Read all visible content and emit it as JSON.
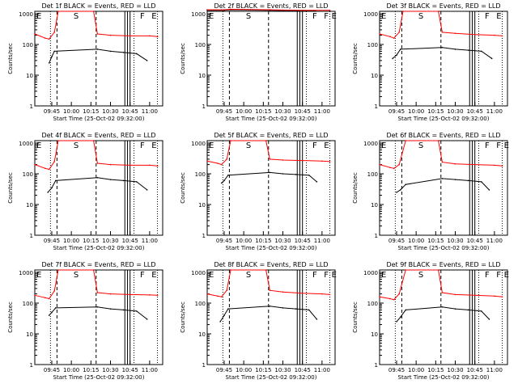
{
  "figure": {
    "ylabel": "Counts/sec",
    "xlabel": "Start Time (25-Oct-02 09:32:00)",
    "y_ticks": [
      "1",
      "10",
      "100",
      "1000"
    ],
    "x_ticks": [
      "09:45",
      "10:00",
      "10:15",
      "10:30",
      "10:45",
      "11:00"
    ],
    "colors": {
      "events": "#000000",
      "lld": "#ff0000",
      "axes": "#000000"
    }
  },
  "chart_data": [
    {
      "type": "line",
      "title": "Det 1f BLACK = Events, RED = LLD",
      "xlabel": "Start Time (25-Oct-02 09:32:00)",
      "ylabel": "Counts/sec",
      "y_scale": "log",
      "ylim": [
        1,
        1200
      ],
      "xlim": [
        "09:32",
        "11:10"
      ],
      "x_ticks": [
        "09:45",
        "10:00",
        "10:15",
        "10:30",
        "10:45",
        "11:00"
      ],
      "y_ticks": [
        "1",
        "10",
        "100",
        "1000"
      ],
      "markers": [
        "E",
        "S",
        "F",
        "E"
      ],
      "series": [
        {
          "name": "Events",
          "color": "#000000",
          "x": [
            "09:43",
            "09:45",
            "09:47",
            "10:20",
            "10:30",
            "10:40",
            "10:50",
            "10:58"
          ],
          "y": [
            25,
            40,
            60,
            70,
            60,
            55,
            50,
            30
          ]
        },
        {
          "name": "LLD",
          "color": "#ff0000",
          "x": [
            "09:32",
            "09:40",
            "09:43",
            "09:47",
            "09:50",
            "10:17",
            "10:20",
            "10:30",
            "10:45",
            "11:00",
            "11:06"
          ],
          "y": [
            220,
            160,
            150,
            250,
            1200,
            1200,
            220,
            200,
            190,
            190,
            180
          ]
        }
      ]
    },
    {
      "type": "line",
      "title": "Det 2f BLACK = Events, RED = LLD",
      "xlabel": "Start Time (25-Oct-02 09:32:00)",
      "ylabel": "Counts/sec",
      "y_scale": "log",
      "ylim": [
        1,
        1200
      ],
      "xlim": [
        "09:32",
        "11:10"
      ],
      "x_ticks": [
        "09:45",
        "10:00",
        "10:15",
        "10:30",
        "10:45",
        "11:00"
      ],
      "y_ticks": [
        "1",
        "10",
        "100",
        "1000"
      ],
      "markers": [
        "E",
        "S",
        "F",
        "F",
        "E"
      ],
      "series": [
        {
          "name": "Events",
          "color": "#000000",
          "x": [
            "09:32",
            "09:45",
            "09:50",
            "10:20",
            "10:40",
            "10:55"
          ],
          "y": [
            1300,
            1300,
            1350,
            1300,
            1250,
            1250
          ]
        },
        {
          "name": "LLD",
          "color": "#ff0000",
          "x": [
            "09:32",
            "09:45",
            "09:50",
            "10:20",
            "10:45",
            "11:06"
          ],
          "y": [
            1350,
            1350,
            1400,
            1350,
            1300,
            1300
          ]
        }
      ]
    },
    {
      "type": "line",
      "title": "Det 3f BLACK = Events, RED = LLD",
      "xlabel": "Start Time (25-Oct-02 09:32:00)",
      "ylabel": "Counts/sec",
      "y_scale": "log",
      "ylim": [
        1,
        1200
      ],
      "xlim": [
        "09:32",
        "11:10"
      ],
      "x_ticks": [
        "09:45",
        "10:00",
        "10:15",
        "10:30",
        "10:45",
        "11:00"
      ],
      "y_ticks": [
        "1",
        "10",
        "100",
        "1000"
      ],
      "markers": [
        "E",
        "S",
        "F",
        "E"
      ],
      "series": [
        {
          "name": "Events",
          "color": "#000000",
          "x": [
            "09:42",
            "09:45",
            "09:48",
            "10:20",
            "10:30",
            "10:40",
            "10:50",
            "10:58"
          ],
          "y": [
            35,
            45,
            70,
            80,
            70,
            65,
            60,
            35
          ]
        },
        {
          "name": "LLD",
          "color": "#ff0000",
          "x": [
            "09:32",
            "09:40",
            "09:43",
            "09:47",
            "09:50",
            "10:17",
            "10:20",
            "10:30",
            "10:45",
            "11:00",
            "11:06"
          ],
          "y": [
            220,
            180,
            160,
            250,
            1200,
            1200,
            250,
            230,
            210,
            200,
            190
          ]
        }
      ]
    },
    {
      "type": "line",
      "title": "Det 4f BLACK = Events, RED = LLD",
      "xlabel": "Start Time (25-Oct-02 09:32:00)",
      "ylabel": "Counts/sec",
      "y_scale": "log",
      "ylim": [
        1,
        1200
      ],
      "xlim": [
        "09:32",
        "11:10"
      ],
      "x_ticks": [
        "09:45",
        "10:00",
        "10:15",
        "10:30",
        "10:45",
        "11:00"
      ],
      "y_ticks": [
        "1",
        "10",
        "100",
        "1000"
      ],
      "markers": [
        "E",
        "S",
        "F",
        "E"
      ],
      "series": [
        {
          "name": "Events",
          "color": "#000000",
          "x": [
            "09:42",
            "09:45",
            "09:48",
            "10:20",
            "10:30",
            "10:40",
            "10:50",
            "10:58"
          ],
          "y": [
            25,
            35,
            60,
            75,
            65,
            60,
            55,
            30
          ]
        },
        {
          "name": "LLD",
          "color": "#ff0000",
          "x": [
            "09:32",
            "09:40",
            "09:43",
            "09:47",
            "09:50",
            "10:17",
            "10:20",
            "10:30",
            "10:45",
            "11:00",
            "11:06"
          ],
          "y": [
            200,
            150,
            140,
            250,
            1200,
            1200,
            220,
            200,
            190,
            190,
            180
          ]
        }
      ]
    },
    {
      "type": "line",
      "title": "Det 5f BLACK = Events, RED = LLD",
      "xlabel": "Start Time (25-Oct-02 09:32:00)",
      "ylabel": "Counts/sec",
      "y_scale": "log",
      "ylim": [
        1,
        1200
      ],
      "xlim": [
        "09:32",
        "11:10"
      ],
      "x_ticks": [
        "09:45",
        "10:00",
        "10:15",
        "10:30",
        "10:45",
        "11:00"
      ],
      "y_ticks": [
        "1",
        "10",
        "100",
        "1000"
      ],
      "markers": [
        "E",
        "S",
        "F",
        "E"
      ],
      "series": [
        {
          "name": "Events",
          "color": "#000000",
          "x": [
            "09:43",
            "09:45",
            "09:48",
            "10:20",
            "10:30",
            "10:40",
            "10:50",
            "10:56"
          ],
          "y": [
            50,
            60,
            90,
            110,
            100,
            95,
            90,
            55
          ]
        },
        {
          "name": "LLD",
          "color": "#ff0000",
          "x": [
            "09:32",
            "09:40",
            "09:43",
            "09:47",
            "09:50",
            "10:17",
            "10:20",
            "10:30",
            "10:45",
            "11:00",
            "11:06"
          ],
          "y": [
            260,
            220,
            200,
            300,
            1200,
            1200,
            300,
            280,
            270,
            260,
            250
          ]
        }
      ]
    },
    {
      "type": "line",
      "title": "Det 6f BLACK = Events, RED = LLD",
      "xlabel": "Start Time (25-Oct-02 09:32:00)",
      "ylabel": "Counts/sec",
      "y_scale": "log",
      "ylim": [
        1,
        1200
      ],
      "xlim": [
        "09:32",
        "11:10"
      ],
      "x_ticks": [
        "09:45",
        "10:00",
        "10:15",
        "10:30",
        "10:45",
        "11:00"
      ],
      "y_ticks": [
        "1",
        "10",
        "100",
        "1000"
      ],
      "markers": [
        "E",
        "S",
        "F",
        "F",
        "E"
      ],
      "series": [
        {
          "name": "Events",
          "color": "#000000",
          "x": [
            "09:45",
            "09:48",
            "09:52",
            "10:20",
            "10:30",
            "10:40",
            "10:50",
            "10:56"
          ],
          "y": [
            25,
            30,
            45,
            70,
            65,
            60,
            55,
            30
          ]
        },
        {
          "name": "LLD",
          "color": "#ff0000",
          "x": [
            "09:32",
            "09:40",
            "09:43",
            "09:47",
            "09:52",
            "10:17",
            "10:20",
            "10:30",
            "10:45",
            "11:00",
            "11:06"
          ],
          "y": [
            200,
            160,
            150,
            200,
            1200,
            1200,
            240,
            210,
            200,
            190,
            180
          ]
        }
      ]
    },
    {
      "type": "line",
      "title": "Det 7f BLACK = Events, RED = LLD",
      "xlabel": "Start Time (25-Oct-02 09:32:00)",
      "ylabel": "Counts/sec",
      "y_scale": "log",
      "ylim": [
        1,
        1200
      ],
      "xlim": [
        "09:32",
        "11:10"
      ],
      "x_ticks": [
        "09:45",
        "10:00",
        "10:15",
        "10:30",
        "10:45",
        "11:00"
      ],
      "y_ticks": [
        "1",
        "10",
        "100",
        "1000"
      ],
      "markers": [
        "E",
        "S",
        "F",
        "E"
      ],
      "series": [
        {
          "name": "Events",
          "color": "#000000",
          "x": [
            "09:43",
            "09:45",
            "09:48",
            "10:20",
            "10:30",
            "10:40",
            "10:50",
            "10:58"
          ],
          "y": [
            40,
            50,
            70,
            75,
            65,
            60,
            55,
            30
          ]
        },
        {
          "name": "LLD",
          "color": "#ff0000",
          "x": [
            "09:32",
            "09:40",
            "09:43",
            "09:47",
            "09:50",
            "10:17",
            "10:20",
            "10:30",
            "10:45",
            "11:00",
            "11:06"
          ],
          "y": [
            180,
            150,
            140,
            250,
            1200,
            1200,
            220,
            200,
            190,
            185,
            180
          ]
        }
      ]
    },
    {
      "type": "line",
      "title": "Det 8f BLACK = Events, RED = LLD",
      "xlabel": "Start Time (25-Oct-02 09:32:00)",
      "ylabel": "Counts/sec",
      "y_scale": "log",
      "ylim": [
        1,
        1200
      ],
      "xlim": [
        "09:32",
        "11:10"
      ],
      "x_ticks": [
        "09:45",
        "10:00",
        "10:15",
        "10:30",
        "10:45",
        "11:00"
      ],
      "y_ticks": [
        "1",
        "10",
        "100",
        "1000"
      ],
      "markers": [
        "E",
        "S",
        "F",
        "F",
        "E"
      ],
      "series": [
        {
          "name": "Events",
          "color": "#000000",
          "x": [
            "09:42",
            "09:45",
            "09:48",
            "10:20",
            "10:30",
            "10:40",
            "10:50",
            "10:56"
          ],
          "y": [
            25,
            40,
            65,
            80,
            70,
            65,
            60,
            30
          ]
        },
        {
          "name": "LLD",
          "color": "#ff0000",
          "x": [
            "09:32",
            "09:40",
            "09:43",
            "09:47",
            "09:50",
            "10:17",
            "10:20",
            "10:30",
            "10:45",
            "11:00",
            "11:06"
          ],
          "y": [
            200,
            170,
            160,
            260,
            1200,
            1200,
            260,
            230,
            210,
            200,
            190
          ]
        }
      ]
    },
    {
      "type": "line",
      "title": "Det 9f BLACK = Events, RED = LLD",
      "xlabel": "Start Time (25-Oct-02 09:32:00)",
      "ylabel": "Counts/sec",
      "y_scale": "log",
      "ylim": [
        1,
        1200
      ],
      "xlim": [
        "09:32",
        "11:10"
      ],
      "x_ticks": [
        "09:45",
        "10:00",
        "10:15",
        "10:30",
        "10:45",
        "11:00"
      ],
      "y_ticks": [
        "1",
        "10",
        "100",
        "1000"
      ],
      "markers": [
        "E",
        "S",
        "F",
        "F",
        "E"
      ],
      "series": [
        {
          "name": "Events",
          "color": "#000000",
          "x": [
            "09:45",
            "09:48",
            "09:52",
            "10:20",
            "10:30",
            "10:40",
            "10:50",
            "10:56"
          ],
          "y": [
            25,
            35,
            60,
            75,
            65,
            60,
            55,
            30
          ]
        },
        {
          "name": "LLD",
          "color": "#ff0000",
          "x": [
            "09:32",
            "09:40",
            "09:43",
            "09:47",
            "09:52",
            "10:17",
            "10:20",
            "10:30",
            "10:45",
            "11:00",
            "11:06"
          ],
          "y": [
            160,
            140,
            130,
            200,
            1200,
            1200,
            220,
            190,
            180,
            170,
            160
          ]
        }
      ]
    }
  ]
}
